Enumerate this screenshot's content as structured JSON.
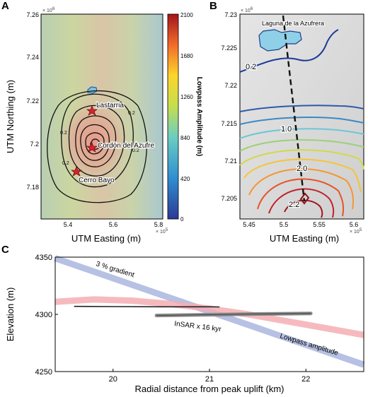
{
  "chart_data": [
    {
      "panel": "A",
      "type": "map",
      "xlabel": "UTM Easting (m)",
      "ylabel": "UTM Northing (m)",
      "x_exponent": "× 10^5",
      "y_exponent": "× 10^6",
      "x_ticks": [
        "5.4",
        "5.6",
        "5.8"
      ],
      "y_ticks": [
        "7.26",
        "7.24",
        "7.22",
        "7.2",
        "7.18"
      ],
      "colorbar_label": "Lowpass Amplitude (m)",
      "colorbar_ticks": [
        "2100",
        "1680",
        "1260",
        "840",
        "420",
        "0"
      ],
      "colorbar_range": [
        0,
        2100
      ],
      "places": [
        {
          "name": "Lastarria"
        },
        {
          "name": "Cordón del Azufre"
        },
        {
          "name": "Cerro Bayo"
        }
      ],
      "contour_labels": [
        "0.2",
        "0.2",
        "0.2",
        "0.2"
      ]
    },
    {
      "panel": "B",
      "type": "map",
      "xlabel": "UTM Easting (m)",
      "x_exponent": "× 10^5",
      "y_exponent": "× 10^6",
      "x_ticks": [
        "5.45",
        "5.5",
        "5.55",
        "5.6"
      ],
      "y_ticks": [
        "7.23",
        "7.225",
        "7.22",
        "7.215",
        "7.21",
        "7.205"
      ],
      "lake_label": "Laguna de la Azufrera",
      "contour_labels": [
        "0.2",
        "1.0",
        "2.0",
        "2.2"
      ]
    },
    {
      "panel": "C",
      "type": "line",
      "xlabel": "Radial distance from peak uplift (km)",
      "ylabel": "Elevation (m)",
      "xlim": [
        19.4,
        22.6
      ],
      "ylim": [
        4250,
        4350
      ],
      "x_ticks": [
        20,
        21,
        22
      ],
      "y_ticks": [
        4250,
        4300,
        4350
      ],
      "series": [
        {
          "name": "3 % gradient",
          "color": "#a9b6de",
          "x": [
            19.4,
            22.6
          ],
          "y": [
            4349,
            4256
          ]
        },
        {
          "name": "Lowpass amplitude",
          "color": "#f4aeb3",
          "x": [
            19.4,
            19.8,
            20.2,
            20.6,
            21.0,
            21.4,
            21.8,
            22.2,
            22.6
          ],
          "y": [
            4311,
            4313,
            4312,
            4309,
            4305,
            4300,
            4294,
            4288,
            4282
          ]
        },
        {
          "name": "InSAR x 16 kyr",
          "color": "#888888",
          "x": [
            20.45,
            21.0,
            21.5,
            22.05
          ],
          "y": [
            4299,
            4299.7,
            4300.3,
            4300.8
          ]
        },
        {
          "name": "",
          "color": "#222222",
          "x": [
            19.6,
            20.0,
            20.5,
            21.0,
            21.1
          ],
          "y": [
            4307,
            4306.8,
            4306.6,
            4306.6,
            4306.5
          ]
        }
      ],
      "annotations": [
        "3 % gradient",
        "InSAR x 16 kyr",
        "Lowpass amplitude"
      ]
    }
  ],
  "panel_letters": [
    "A",
    "B",
    "C"
  ]
}
